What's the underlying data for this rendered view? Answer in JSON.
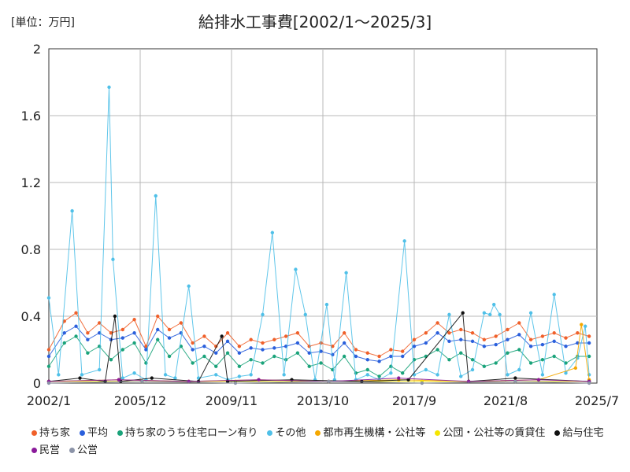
{
  "chart_data": {
    "type": "line",
    "title": "給排水工事費[2002/1～2025/3]",
    "unit_label": "[単位：万円]",
    "xlabel": "",
    "ylabel": "",
    "x_range": [
      "2002/1",
      "2025/7"
    ],
    "x_ticks": [
      "2002/1",
      "2005/12",
      "2009/11",
      "2013/10",
      "2017/9",
      "2021/8",
      "2025/7"
    ],
    "ylim": [
      0,
      2
    ],
    "y_ticks": [
      "0",
      "0.4",
      "0.8",
      "1.2",
      "1.6",
      "2"
    ],
    "grid": true,
    "legend_position": "bottom",
    "series": [
      {
        "name": "持ち家",
        "color": "#f0602a",
        "points": [
          [
            "2002/1",
            0.2
          ],
          [
            "2002/9",
            0.37
          ],
          [
            "2003/3",
            0.42
          ],
          [
            "2003/9",
            0.3
          ],
          [
            "2004/3",
            0.36
          ],
          [
            "2004/9",
            0.3
          ],
          [
            "2005/3",
            0.32
          ],
          [
            "2005/9",
            0.38
          ],
          [
            "2006/3",
            0.22
          ],
          [
            "2006/9",
            0.4
          ],
          [
            "2007/3",
            0.32
          ],
          [
            "2007/9",
            0.36
          ],
          [
            "2008/3",
            0.24
          ],
          [
            "2008/9",
            0.28
          ],
          [
            "2009/3",
            0.22
          ],
          [
            "2009/9",
            0.3
          ],
          [
            "2010/3",
            0.22
          ],
          [
            "2010/9",
            0.26
          ],
          [
            "2011/3",
            0.24
          ],
          [
            "2011/9",
            0.26
          ],
          [
            "2012/3",
            0.28
          ],
          [
            "2012/9",
            0.3
          ],
          [
            "2013/3",
            0.22
          ],
          [
            "2013/9",
            0.24
          ],
          [
            "2014/3",
            0.22
          ],
          [
            "2014/9",
            0.3
          ],
          [
            "2015/3",
            0.2
          ],
          [
            "2015/9",
            0.18
          ],
          [
            "2016/3",
            0.16
          ],
          [
            "2016/9",
            0.2
          ],
          [
            "2017/3",
            0.19
          ],
          [
            "2017/9",
            0.26
          ],
          [
            "2018/3",
            0.3
          ],
          [
            "2018/9",
            0.36
          ],
          [
            "2019/3",
            0.3
          ],
          [
            "2019/9",
            0.32
          ],
          [
            "2020/3",
            0.3
          ],
          [
            "2020/9",
            0.26
          ],
          [
            "2021/3",
            0.28
          ],
          [
            "2021/9",
            0.32
          ],
          [
            "2022/3",
            0.36
          ],
          [
            "2022/9",
            0.26
          ],
          [
            "2023/3",
            0.28
          ],
          [
            "2023/9",
            0.3
          ],
          [
            "2024/3",
            0.27
          ],
          [
            "2024/9",
            0.3
          ],
          [
            "2025/3",
            0.28
          ]
        ]
      },
      {
        "name": "平均",
        "color": "#2a5fdc",
        "points": [
          [
            "2002/1",
            0.16
          ],
          [
            "2002/9",
            0.3
          ],
          [
            "2003/3",
            0.34
          ],
          [
            "2003/9",
            0.26
          ],
          [
            "2004/3",
            0.3
          ],
          [
            "2004/9",
            0.26
          ],
          [
            "2005/3",
            0.27
          ],
          [
            "2005/9",
            0.3
          ],
          [
            "2006/3",
            0.2
          ],
          [
            "2006/9",
            0.32
          ],
          [
            "2007/3",
            0.27
          ],
          [
            "2007/9",
            0.3
          ],
          [
            "2008/3",
            0.2
          ],
          [
            "2008/9",
            0.22
          ],
          [
            "2009/3",
            0.18
          ],
          [
            "2009/9",
            0.25
          ],
          [
            "2010/3",
            0.18
          ],
          [
            "2010/9",
            0.21
          ],
          [
            "2011/3",
            0.2
          ],
          [
            "2011/9",
            0.21
          ],
          [
            "2012/3",
            0.22
          ],
          [
            "2012/9",
            0.24
          ],
          [
            "2013/3",
            0.18
          ],
          [
            "2013/9",
            0.19
          ],
          [
            "2014/3",
            0.17
          ],
          [
            "2014/9",
            0.24
          ],
          [
            "2015/3",
            0.16
          ],
          [
            "2015/9",
            0.14
          ],
          [
            "2016/3",
            0.13
          ],
          [
            "2016/9",
            0.16
          ],
          [
            "2017/3",
            0.16
          ],
          [
            "2017/9",
            0.22
          ],
          [
            "2018/3",
            0.24
          ],
          [
            "2018/9",
            0.3
          ],
          [
            "2019/3",
            0.25
          ],
          [
            "2019/9",
            0.26
          ],
          [
            "2020/3",
            0.25
          ],
          [
            "2020/9",
            0.22
          ],
          [
            "2021/3",
            0.23
          ],
          [
            "2021/9",
            0.26
          ],
          [
            "2022/3",
            0.29
          ],
          [
            "2022/9",
            0.22
          ],
          [
            "2023/3",
            0.23
          ],
          [
            "2023/9",
            0.25
          ],
          [
            "2024/3",
            0.22
          ],
          [
            "2024/9",
            0.24
          ],
          [
            "2025/3",
            0.24
          ]
        ]
      },
      {
        "name": "持ち家のうち住宅ローン有り",
        "color": "#1aa37a",
        "points": [
          [
            "2002/1",
            0.1
          ],
          [
            "2002/9",
            0.24
          ],
          [
            "2003/3",
            0.28
          ],
          [
            "2003/9",
            0.18
          ],
          [
            "2004/3",
            0.22
          ],
          [
            "2004/9",
            0.14
          ],
          [
            "2005/3",
            0.2
          ],
          [
            "2005/9",
            0.24
          ],
          [
            "2006/3",
            0.12
          ],
          [
            "2006/9",
            0.26
          ],
          [
            "2007/3",
            0.16
          ],
          [
            "2007/9",
            0.22
          ],
          [
            "2008/3",
            0.12
          ],
          [
            "2008/9",
            0.16
          ],
          [
            "2009/3",
            0.1
          ],
          [
            "2009/9",
            0.18
          ],
          [
            "2010/3",
            0.1
          ],
          [
            "2010/9",
            0.14
          ],
          [
            "2011/3",
            0.12
          ],
          [
            "2011/9",
            0.16
          ],
          [
            "2012/3",
            0.14
          ],
          [
            "2012/9",
            0.18
          ],
          [
            "2013/3",
            0.1
          ],
          [
            "2013/9",
            0.12
          ],
          [
            "2014/3",
            0.08
          ],
          [
            "2014/9",
            0.16
          ],
          [
            "2015/3",
            0.06
          ],
          [
            "2015/9",
            0.08
          ],
          [
            "2016/3",
            0.04
          ],
          [
            "2016/9",
            0.1
          ],
          [
            "2017/3",
            0.06
          ],
          [
            "2017/9",
            0.14
          ],
          [
            "2018/3",
            0.16
          ],
          [
            "2018/9",
            0.2
          ],
          [
            "2019/3",
            0.14
          ],
          [
            "2019/9",
            0.18
          ],
          [
            "2020/3",
            0.14
          ],
          [
            "2020/9",
            0.1
          ],
          [
            "2021/3",
            0.12
          ],
          [
            "2021/9",
            0.18
          ],
          [
            "2022/3",
            0.2
          ],
          [
            "2022/9",
            0.12
          ],
          [
            "2023/3",
            0.14
          ],
          [
            "2023/9",
            0.16
          ],
          [
            "2024/3",
            0.12
          ],
          [
            "2024/9",
            0.16
          ],
          [
            "2025/3",
            0.16
          ]
        ]
      },
      {
        "name": "その他",
        "color": "#4fc0e8",
        "points": [
          [
            "2002/1",
            0.51
          ],
          [
            "2002/6",
            0.05
          ],
          [
            "2003/1",
            1.03
          ],
          [
            "2003/6",
            0.05
          ],
          [
            "2004/3",
            0.08
          ],
          [
            "2004/8",
            1.77
          ],
          [
            "2004/10",
            0.74
          ],
          [
            "2005/3",
            0.03
          ],
          [
            "2005/9",
            0.06
          ],
          [
            "2006/3",
            0.02
          ],
          [
            "2006/8",
            1.12
          ],
          [
            "2007/1",
            0.05
          ],
          [
            "2007/6",
            0.03
          ],
          [
            "2008/1",
            0.58
          ],
          [
            "2008/6",
            0.03
          ],
          [
            "2009/3",
            0.05
          ],
          [
            "2009/9",
            0.02
          ],
          [
            "2010/3",
            0.04
          ],
          [
            "2010/9",
            0.05
          ],
          [
            "2011/3",
            0.41
          ],
          [
            "2011/8",
            0.9
          ],
          [
            "2012/2",
            0.05
          ],
          [
            "2012/8",
            0.68
          ],
          [
            "2013/1",
            0.41
          ],
          [
            "2013/6",
            0.02
          ],
          [
            "2013/12",
            0.47
          ],
          [
            "2014/4",
            0.02
          ],
          [
            "2014/10",
            0.66
          ],
          [
            "2015/3",
            0.02
          ],
          [
            "2015/9",
            0.05
          ],
          [
            "2016/3",
            0.02
          ],
          [
            "2016/9",
            0.06
          ],
          [
            "2017/4",
            0.85
          ],
          [
            "2017/9",
            0.05
          ],
          [
            "2018/3",
            0.08
          ],
          [
            "2018/9",
            0.05
          ],
          [
            "2019/3",
            0.41
          ],
          [
            "2019/9",
            0.04
          ],
          [
            "2020/3",
            0.08
          ],
          [
            "2020/9",
            0.42
          ],
          [
            "2020/12",
            0.41
          ],
          [
            "2021/2",
            0.47
          ],
          [
            "2021/5",
            0.41
          ],
          [
            "2021/9",
            0.05
          ],
          [
            "2022/3",
            0.08
          ],
          [
            "2022/9",
            0.42
          ],
          [
            "2023/3",
            0.05
          ],
          [
            "2023/9",
            0.53
          ],
          [
            "2024/3",
            0.06
          ],
          [
            "2024/9",
            0.15
          ],
          [
            "2025/1",
            0.34
          ],
          [
            "2025/3",
            0.05
          ]
        ]
      },
      {
        "name": "都市再生機構・公社等",
        "color": "#f5a800",
        "points": [
          [
            "2002/1",
            0.01
          ],
          [
            "2005/1",
            0.02
          ],
          [
            "2008/1",
            0.01
          ],
          [
            "2011/1",
            0.02
          ],
          [
            "2014/1",
            0.01
          ],
          [
            "2017/1",
            0.02
          ],
          [
            "2020/1",
            0.01
          ],
          [
            "2023/1",
            0.02
          ],
          [
            "2024/8",
            0.09
          ],
          [
            "2024/11",
            0.35
          ],
          [
            "2025/3",
            0.02
          ]
        ]
      },
      {
        "name": "公団・公社等の賃貸住",
        "color": "#f5e600",
        "points": [
          [
            "2002/1",
            0.01
          ],
          [
            "2006/1",
            0.01
          ],
          [
            "2010/1",
            0.01
          ],
          [
            "2014/1",
            0.01
          ],
          [
            "2018/1",
            0.01
          ],
          [
            "2022/1",
            0.01
          ],
          [
            "2025/3",
            0.01
          ]
        ]
      },
      {
        "name": "給与住宅",
        "color": "#111111",
        "points": [
          [
            "2002/1",
            0.01
          ],
          [
            "2003/5",
            0.03
          ],
          [
            "2004/6",
            0.01
          ],
          [
            "2004/11",
            0.4
          ],
          [
            "2005/2",
            0.01
          ],
          [
            "2006/6",
            0.03
          ],
          [
            "2008/6",
            0.01
          ],
          [
            "2009/6",
            0.28
          ],
          [
            "2009/9",
            0.01
          ],
          [
            "2012/6",
            0.02
          ],
          [
            "2015/6",
            0.01
          ],
          [
            "2017/6",
            0.02
          ],
          [
            "2019/10",
            0.42
          ],
          [
            "2020/1",
            0.01
          ],
          [
            "2022/1",
            0.03
          ],
          [
            "2025/3",
            0.01
          ]
        ]
      },
      {
        "name": "民営",
        "color": "#8a1a9a",
        "points": [
          [
            "2002/1",
            0.01
          ],
          [
            "2005/1",
            0.02
          ],
          [
            "2008/1",
            0.01
          ],
          [
            "2011/1",
            0.02
          ],
          [
            "2014/1",
            0.01
          ],
          [
            "2017/1",
            0.03
          ],
          [
            "2020/1",
            0.01
          ],
          [
            "2023/1",
            0.02
          ],
          [
            "2025/3",
            0.01
          ]
        ]
      },
      {
        "name": "公営",
        "color": "#8c94a8",
        "points": [
          [
            "2002/1",
            0.0
          ],
          [
            "2006/1",
            0.01
          ],
          [
            "2010/1",
            0.0
          ],
          [
            "2014/1",
            0.01
          ],
          [
            "2018/1",
            0.0
          ],
          [
            "2022/1",
            0.01
          ],
          [
            "2025/3",
            0.0
          ]
        ]
      }
    ]
  }
}
